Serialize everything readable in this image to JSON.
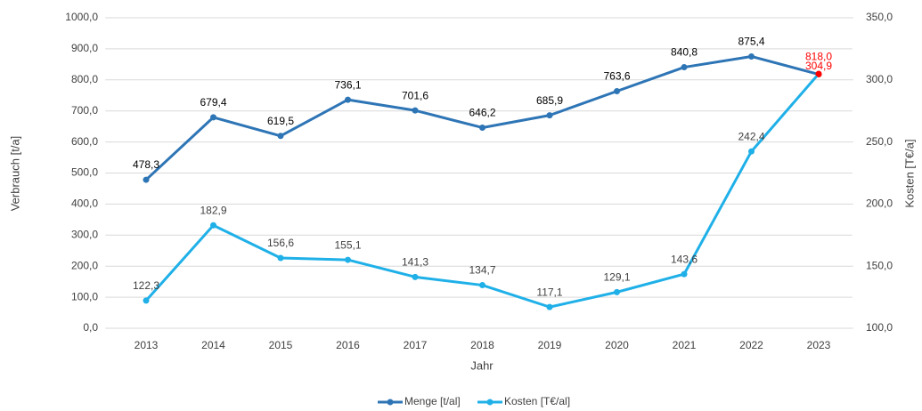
{
  "chart_data": {
    "type": "line",
    "categories": [
      "2013",
      "2014",
      "2015",
      "2016",
      "2017",
      "2018",
      "2019",
      "2020",
      "2021",
      "2022",
      "2023"
    ],
    "series": [
      {
        "name": "Menge [t/al]",
        "color": "#2e75b6",
        "axis": "y",
        "values": [
          478.3,
          679.4,
          619.5,
          736.1,
          701.6,
          646.2,
          685.9,
          763.6,
          840.8,
          875.4,
          818.0
        ],
        "value_labels": [
          "478,3",
          "679,4",
          "619,5",
          "736,1",
          "701,6",
          "646,2",
          "685,9",
          "763,6",
          "840,8",
          "875,4",
          "818,0"
        ]
      },
      {
        "name": "Kosten [T€/al]",
        "color": "#1fb0e8",
        "axis": "y2",
        "values": [
          122.3,
          182.9,
          156.6,
          155.1,
          141.3,
          134.7,
          117.1,
          129.1,
          143.6,
          242.4,
          304.9
        ],
        "value_labels": [
          "122,3",
          "182,9",
          "156,6",
          "155,1",
          "141,3",
          "134,7",
          "117,1",
          "129,1",
          "143,6",
          "242,4",
          "304,9"
        ]
      }
    ],
    "highlight_color": "#ff0000",
    "xlabel": "Jahr",
    "ylabel": "Verbrauch [t/a]",
    "y2label": "Kosten [T€/a]",
    "ylim": [
      0,
      1000
    ],
    "yticks": [
      {
        "value": 0,
        "label": "0,0"
      },
      {
        "value": 100,
        "label": "100,0"
      },
      {
        "value": 200,
        "label": "200,0"
      },
      {
        "value": 300,
        "label": "300,0"
      },
      {
        "value": 400,
        "label": "400,0"
      },
      {
        "value": 500,
        "label": "500,0"
      },
      {
        "value": 600,
        "label": "600,0"
      },
      {
        "value": 700,
        "label": "700,0"
      },
      {
        "value": 800,
        "label": "800,0"
      },
      {
        "value": 900,
        "label": "900,0"
      },
      {
        "value": 1000,
        "label": "1000,0"
      }
    ],
    "y2lim": [
      100,
      350
    ],
    "y2ticks": [
      {
        "value": 100,
        "label": "100,0"
      },
      {
        "value": 150,
        "label": "150,0"
      },
      {
        "value": 200,
        "label": "200,0"
      },
      {
        "value": 250,
        "label": "250,0"
      },
      {
        "value": 300,
        "label": "300,0"
      },
      {
        "value": 350,
        "label": "350,0"
      }
    ],
    "grid": true,
    "legend": "bottom"
  }
}
